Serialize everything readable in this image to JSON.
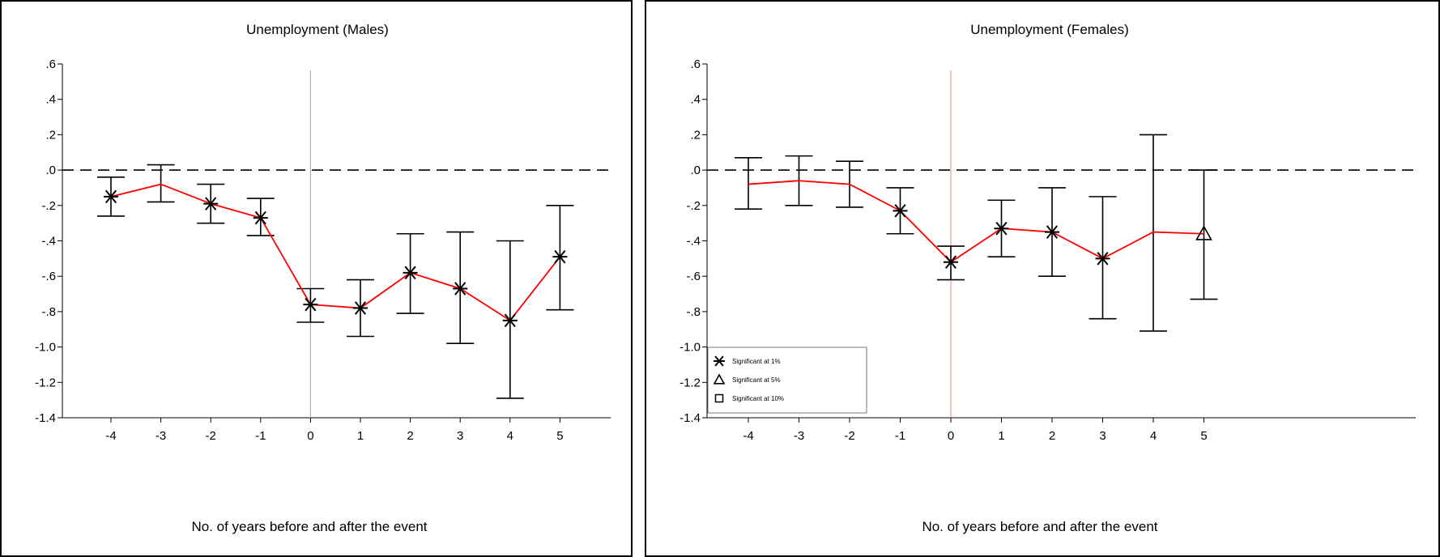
{
  "chart_data": [
    {
      "type": "line",
      "title": "Unemployment (Males)",
      "xlabel": "No. of years before and after the event",
      "ylabel": "",
      "x": [
        -4,
        -3,
        -2,
        -1,
        0,
        1,
        2,
        3,
        4,
        5
      ],
      "xticks": [
        "-4",
        "-3",
        "-2",
        "-1",
        "0",
        "1",
        "2",
        "3",
        "4",
        "5"
      ],
      "yticks": [
        ".6",
        ".4",
        ".2",
        ".0",
        "-.2",
        "-.4",
        "-.6",
        "-.8",
        "-1.0",
        "-1.2",
        "-1.4"
      ],
      "ylim": [
        -1.4,
        0.6
      ],
      "series": [
        {
          "estimate": [
            -0.15,
            -0.08,
            -0.19,
            -0.27,
            -0.76,
            -0.78,
            -0.58,
            -0.67,
            -0.85,
            -0.49
          ],
          "ci_low": [
            -0.26,
            -0.18,
            -0.3,
            -0.37,
            -0.86,
            -0.94,
            -0.81,
            -0.98,
            -1.29,
            -0.79
          ],
          "ci_high": [
            -0.04,
            0.03,
            -0.08,
            -0.16,
            -0.67,
            -0.62,
            -0.36,
            -0.35,
            -0.4,
            -0.2
          ],
          "significance": [
            "1%",
            "none",
            "1%",
            "1%",
            "1%",
            "1%",
            "1%",
            "1%",
            "1%",
            "1%"
          ]
        }
      ],
      "reference_line_y": 0,
      "event_line_x": 0,
      "colors": {
        "line": "#ff0000",
        "event_line": "#ff8080",
        "marker": "#000000"
      }
    },
    {
      "type": "line",
      "title": "Unemployment (Females)",
      "xlabel": "No. of years before and after the event",
      "ylabel": "",
      "x": [
        -4,
        -3,
        -2,
        -1,
        0,
        1,
        2,
        3,
        4,
        5
      ],
      "xticks": [
        "-4",
        "-3",
        "-2",
        "-1",
        "0",
        "1",
        "2",
        "3",
        "4",
        "5"
      ],
      "yticks": [
        ".6",
        ".4",
        ".2",
        ".0",
        "-.2",
        "-.4",
        "-.6",
        "-.8",
        "-1.0",
        "-1.2",
        "-1.4"
      ],
      "ylim": [
        -1.4,
        0.6
      ],
      "series": [
        {
          "estimate": [
            -0.08,
            -0.06,
            -0.08,
            -0.23,
            -0.52,
            -0.33,
            -0.35,
            -0.5,
            -0.35,
            -0.36
          ],
          "ci_low": [
            -0.22,
            -0.2,
            -0.21,
            -0.36,
            -0.62,
            -0.49,
            -0.6,
            -0.84,
            -0.91,
            -0.73
          ],
          "ci_high": [
            0.07,
            0.08,
            0.05,
            -0.1,
            -0.43,
            -0.17,
            -0.1,
            -0.15,
            0.2,
            0.0
          ],
          "significance": [
            "none",
            "none",
            "none",
            "1%",
            "1%",
            "1%",
            "1%",
            "1%",
            "none",
            "5%"
          ]
        }
      ],
      "reference_line_y": 0,
      "event_line_x": 0,
      "legend": {
        "placement": "bottom-left",
        "items": [
          {
            "label": "Significant at 1%",
            "marker": "asterisk"
          },
          {
            "label": "Significant at 5%",
            "marker": "triangle"
          },
          {
            "label": "Significant at 10%",
            "marker": "square"
          }
        ]
      },
      "colors": {
        "line": "#ff0000",
        "event_line": "#ff8080",
        "marker": "#000000"
      }
    }
  ]
}
